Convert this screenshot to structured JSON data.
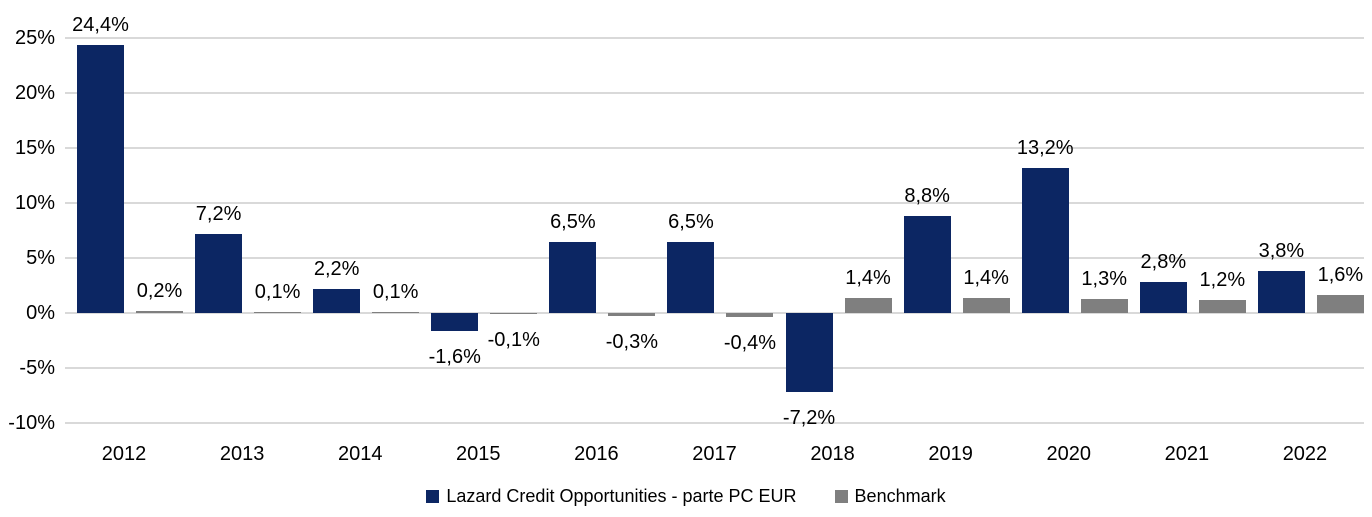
{
  "chart_data": {
    "type": "bar",
    "title": "",
    "categories": [
      "2012",
      "2013",
      "2014",
      "2015",
      "2016",
      "2017",
      "2018",
      "2019",
      "2020",
      "2021",
      "2022"
    ],
    "series": [
      {
        "name": "Lazard Credit Opportunities - parte PC EUR",
        "color": "#0c2663",
        "values": [
          24.4,
          7.2,
          2.2,
          -1.6,
          6.5,
          6.5,
          -7.2,
          8.8,
          13.2,
          2.8,
          3.8
        ],
        "labels": [
          "24,4%",
          "7,2%",
          "2,2%",
          "-1,6%",
          "6,5%",
          "6,5%",
          "-7,2%",
          "8,8%",
          "13,2%",
          "2,8%",
          "3,8%"
        ]
      },
      {
        "name": "Benchmark",
        "color": "#7f7f7f",
        "values": [
          0.2,
          0.1,
          0.1,
          -0.1,
          -0.3,
          -0.4,
          1.4,
          1.4,
          1.3,
          1.2,
          1.6
        ],
        "labels": [
          "0,2%",
          "0,1%",
          "0,1%",
          "-0,1%",
          "-0,3%",
          "-0,4%",
          "1,4%",
          "1,4%",
          "1,3%",
          "1,2%",
          "1,6%"
        ]
      }
    ],
    "y_axis": {
      "min": -10,
      "max": 25,
      "ticks": [
        {
          "value": 25,
          "label": "25%"
        },
        {
          "value": 20,
          "label": "20%"
        },
        {
          "value": 15,
          "label": "15%"
        },
        {
          "value": 10,
          "label": "10%"
        },
        {
          "value": 5,
          "label": "5%"
        },
        {
          "value": 0,
          "label": "0%"
        },
        {
          "value": -5,
          "label": "-5%"
        },
        {
          "value": -10,
          "label": "-10%"
        }
      ]
    },
    "grid": true,
    "legend_position": "bottom-center"
  },
  "colors": {
    "fund_series": "#0c2663",
    "benchmark_series": "#7f7f7f",
    "gridline": "#d9d9d9",
    "text": "#000000",
    "background": "#ffffff"
  }
}
